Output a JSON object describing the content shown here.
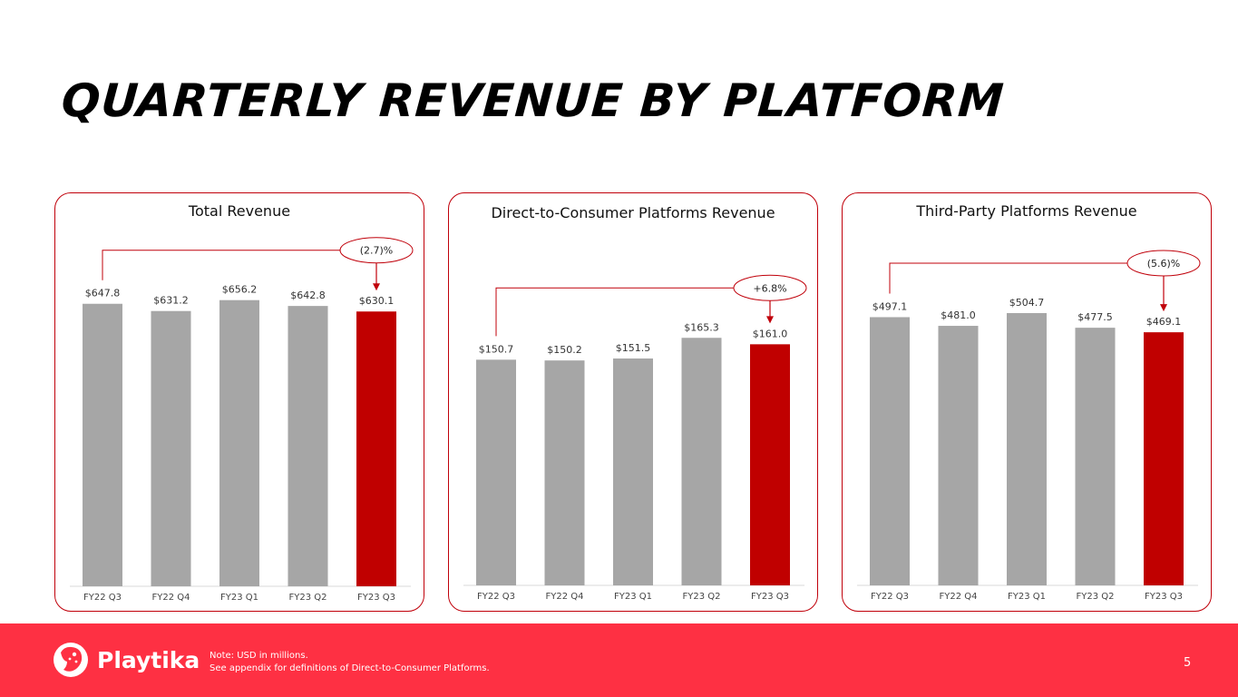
{
  "title": "QUARTERLY REVENUE BY PLATFORM",
  "colors": {
    "bar": "#a6a6a6",
    "bar_highlight": "#c00000",
    "accent": "#c0000a",
    "footer": "#fe3043"
  },
  "chart_data": [
    {
      "type": "bar",
      "title": "Total Revenue",
      "categories": [
        "FY22 Q3",
        "FY22 Q4",
        "FY23 Q1",
        "FY23 Q2",
        "FY23 Q3"
      ],
      "values": [
        647.8,
        631.2,
        656.2,
        642.8,
        630.1
      ],
      "labels": [
        "$647.8",
        "$631.2",
        "$656.2",
        "$642.8",
        "$630.1"
      ],
      "highlight_index": 4,
      "change": "(2.7)%",
      "change_direction": "down"
    },
    {
      "type": "bar",
      "title": "Direct-to-Consumer Platforms Revenue",
      "categories": [
        "FY22 Q3",
        "FY22 Q4",
        "FY23 Q1",
        "FY23 Q2",
        "FY23 Q3"
      ],
      "values": [
        150.7,
        150.2,
        151.5,
        165.3,
        161.0
      ],
      "labels": [
        "$150.7",
        "$150.2",
        "$151.5",
        "$165.3",
        "$161.0"
      ],
      "highlight_index": 4,
      "change": "+6.8%",
      "change_direction": "up"
    },
    {
      "type": "bar",
      "title": "Third-Party Platforms Revenue",
      "categories": [
        "FY22 Q3",
        "FY22 Q4",
        "FY23 Q1",
        "FY23 Q2",
        "FY23 Q3"
      ],
      "values": [
        497.1,
        481.0,
        504.7,
        477.5,
        469.1
      ],
      "labels": [
        "$497.1",
        "$481.0",
        "$504.7",
        "$477.5",
        "$469.1"
      ],
      "highlight_index": 4,
      "change": "(5.6)%",
      "change_direction": "down"
    }
  ],
  "footer": {
    "logo_text": "Playtika",
    "logo_icon": "cheetah-icon",
    "note_line1": "Note:  USD in millions.",
    "note_line2": "See appendix for definitions of Direct-to-Consumer Platforms.",
    "page_number": "5"
  }
}
